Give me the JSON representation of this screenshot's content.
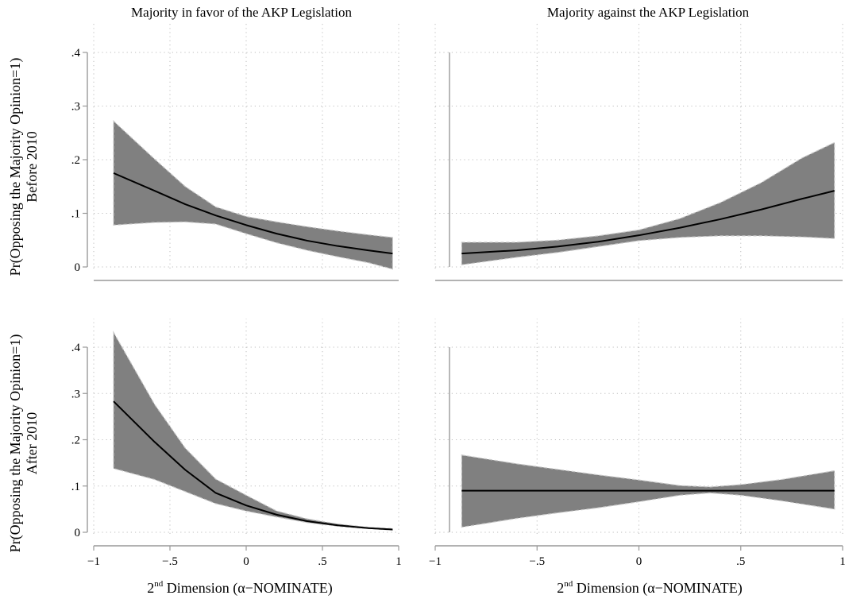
{
  "chart_data": {
    "type": "area",
    "column_titles": [
      "Majority in favor of the AKP Legislation",
      "Majority against the AKP Legislation"
    ],
    "row_labels": [
      [
        "Pr(Opposing the Majority Opinion=1)",
        "Before 2010"
      ],
      [
        "Pr(Opposing the Majority Opinion=1)",
        "After 2010"
      ]
    ],
    "xlabel": {
      "prefix": "2",
      "superscript": "nd",
      "suffix": " Dimension (α−NOMINATE)"
    },
    "xlim": [
      -1,
      1
    ],
    "ylim": [
      0,
      0.4
    ],
    "x_ticks": [
      -1,
      -0.5,
      0,
      0.5,
      1
    ],
    "x_tick_labels": [
      "−1",
      "−.5",
      "0",
      ".5",
      "1"
    ],
    "y_ticks": [
      0,
      0.1,
      0.2,
      0.3,
      0.4
    ],
    "y_tick_labels": [
      "0",
      ".1",
      ".2",
      ".3",
      ".4"
    ],
    "grid": true,
    "colors": {
      "band": "#808080",
      "band_edge": "#c8c8c8",
      "line": "#000000",
      "grid": "#bdbdbd",
      "axis": "#999999"
    },
    "panels": [
      {
        "row": 0,
        "col": 0,
        "x": [
          -0.87,
          -0.6,
          -0.4,
          -0.2,
          0,
          0.2,
          0.4,
          0.6,
          0.8,
          0.96
        ],
        "estimate": [
          0.175,
          0.142,
          0.117,
          0.096,
          0.078,
          0.062,
          0.049,
          0.039,
          0.031,
          0.025
        ],
        "lower": [
          0.078,
          0.083,
          0.084,
          0.08,
          0.062,
          0.045,
          0.031,
          0.019,
          0.008,
          -0.004
        ],
        "upper": [
          0.272,
          0.201,
          0.15,
          0.112,
          0.094,
          0.084,
          0.075,
          0.067,
          0.06,
          0.055
        ]
      },
      {
        "row": 0,
        "col": 1,
        "x": [
          -0.87,
          -0.6,
          -0.4,
          -0.2,
          0,
          0.2,
          0.4,
          0.6,
          0.8,
          0.96
        ],
        "estimate": [
          0.025,
          0.031,
          0.038,
          0.047,
          0.059,
          0.073,
          0.089,
          0.107,
          0.127,
          0.142
        ],
        "lower": [
          0.004,
          0.018,
          0.027,
          0.038,
          0.049,
          0.055,
          0.058,
          0.058,
          0.056,
          0.053
        ],
        "upper": [
          0.046,
          0.046,
          0.05,
          0.058,
          0.069,
          0.09,
          0.12,
          0.157,
          0.203,
          0.232
        ]
      },
      {
        "row": 1,
        "col": 0,
        "x": [
          -0.87,
          -0.6,
          -0.4,
          -0.2,
          0,
          0.2,
          0.4,
          0.6,
          0.8,
          0.96
        ],
        "estimate": [
          0.283,
          0.195,
          0.135,
          0.085,
          0.058,
          0.038,
          0.024,
          0.015,
          0.009,
          0.006
        ],
        "lower": [
          0.138,
          0.114,
          0.088,
          0.062,
          0.046,
          0.033,
          0.021,
          0.013,
          0.008,
          0.005
        ],
        "upper": [
          0.432,
          0.276,
          0.182,
          0.115,
          0.08,
          0.046,
          0.029,
          0.018,
          0.011,
          0.008
        ]
      },
      {
        "row": 1,
        "col": 1,
        "x": [
          -0.87,
          -0.6,
          -0.4,
          -0.2,
          0,
          0.2,
          0.35,
          0.5,
          0.7,
          0.96
        ],
        "estimate": [
          0.09,
          0.09,
          0.09,
          0.09,
          0.09,
          0.09,
          0.09,
          0.09,
          0.09,
          0.09
        ],
        "lower": [
          0.011,
          0.03,
          0.042,
          0.053,
          0.066,
          0.08,
          0.085,
          0.08,
          0.068,
          0.05
        ],
        "upper": [
          0.167,
          0.148,
          0.136,
          0.124,
          0.113,
          0.101,
          0.098,
          0.103,
          0.114,
          0.133
        ]
      }
    ]
  }
}
